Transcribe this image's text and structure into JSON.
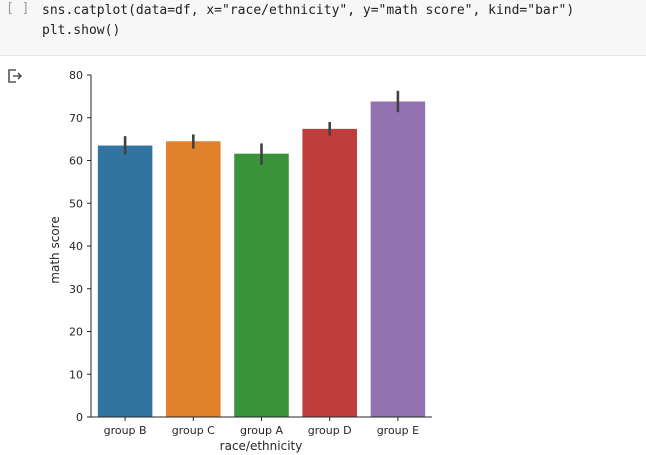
{
  "cell": {
    "run_indicator": "[ ]",
    "code_lines": [
      "sns.catplot(data=df, x=\"race/ethnicity\", y=\"math score\", kind=\"bar\")",
      "plt.show()"
    ]
  },
  "output": {
    "icon": "output-redirect-icon"
  },
  "chart_data": {
    "type": "bar",
    "categories": [
      "group B",
      "group C",
      "group A",
      "group D",
      "group E"
    ],
    "values": [
      63.5,
      64.5,
      61.6,
      67.4,
      73.8
    ],
    "error_bars": [
      [
        61.4,
        65.7
      ],
      [
        62.8,
        66.1
      ],
      [
        59.0,
        64.0
      ],
      [
        65.8,
        69.0
      ],
      [
        71.3,
        76.3
      ]
    ],
    "colors": [
      "#3274a1",
      "#e1812c",
      "#3a923a",
      "#c03d3e",
      "#9372b2"
    ],
    "error_color": "#424242",
    "xlabel": "race/ethnicity",
    "ylabel": "math score",
    "ylim": [
      0,
      80
    ],
    "yticks": [
      0,
      10,
      20,
      30,
      40,
      50,
      60,
      70,
      80
    ],
    "grid": false,
    "legend": "none"
  }
}
